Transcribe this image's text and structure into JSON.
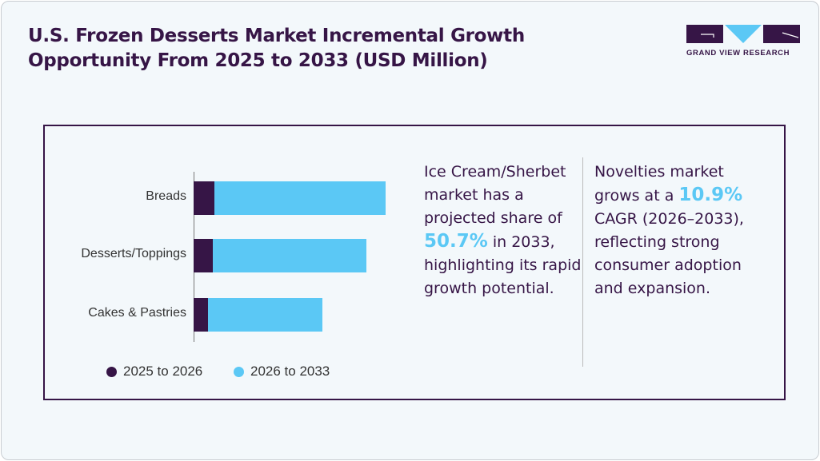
{
  "title": "U.S. Frozen Desserts Market Incremental Growth Opportunity From 2025 to 2033 (USD Million)",
  "logo": {
    "text": "GRAND VIEW RESEARCH"
  },
  "colors": {
    "dark": "#361546",
    "light": "#5bc8f5"
  },
  "chart_data": {
    "type": "bar",
    "orientation": "horizontal-stacked",
    "title": "U.S. Frozen Desserts Market Incremental Growth Opportunity From 2025 to 2033 (USD Million)",
    "categories": [
      "Breads",
      "Desserts/Toppings",
      "Cakes & Pastries"
    ],
    "series": [
      {
        "name": "2025 to 2026",
        "values": [
          26,
          24,
          18
        ]
      },
      {
        "name": "2026 to 2033",
        "values": [
          214,
          192,
          143
        ]
      }
    ],
    "xlim": [
      0,
      240
    ],
    "grid": false,
    "legend": "bottom"
  },
  "notes": [
    {
      "pre": "Ice Cream/Sherbet market has a projected share of ",
      "highlight": "50.7%",
      "post": " in 2033, highlighting its rapid growth potential."
    },
    {
      "pre": "Novelties market grows at a ",
      "highlight": "10.9%",
      "post": " CAGR (2026–2033), reflecting strong consumer adoption and expansion."
    }
  ]
}
